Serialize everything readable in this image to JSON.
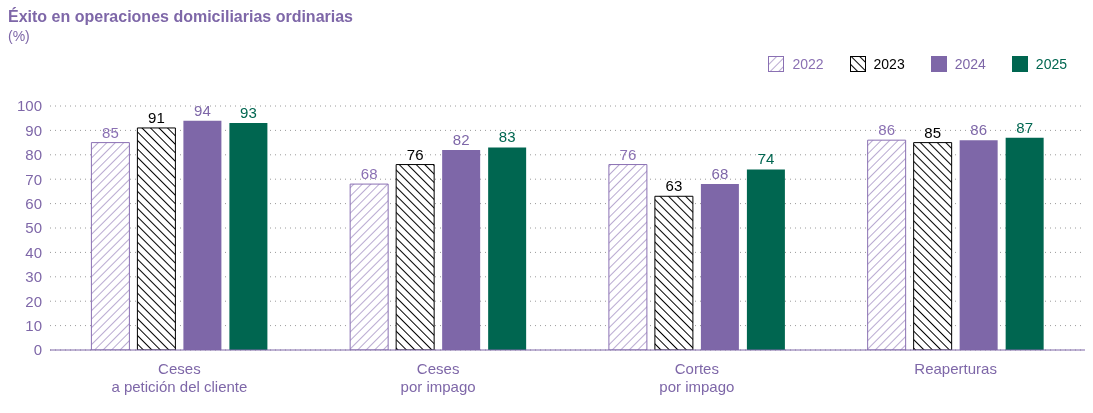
{
  "chart_data": {
    "type": "bar",
    "title": "Éxito en operaciones domiciliarias ordinarias",
    "subtitle": "(%)",
    "categories": [
      "Ceses\na petición del cliente",
      "Ceses\npor impago",
      "Cortes\npor impago",
      "Reaperturas"
    ],
    "series": [
      {
        "name": "2022",
        "color": "#8a70b3",
        "values": [
          85,
          68,
          76,
          86
        ]
      },
      {
        "name": "2023",
        "color": "#000000",
        "values": [
          91,
          76,
          63,
          85
        ]
      },
      {
        "name": "2024",
        "color": "#7e67a8",
        "values": [
          94,
          82,
          68,
          86
        ]
      },
      {
        "name": "2025",
        "color": "#006650",
        "values": [
          93,
          83,
          74,
          87
        ]
      }
    ],
    "ylim": [
      0,
      100
    ],
    "yticks": [
      0,
      10,
      20,
      30,
      40,
      50,
      60,
      70,
      80,
      90,
      100
    ],
    "grid": "y",
    "legend": "top right",
    "data_labels": true
  }
}
